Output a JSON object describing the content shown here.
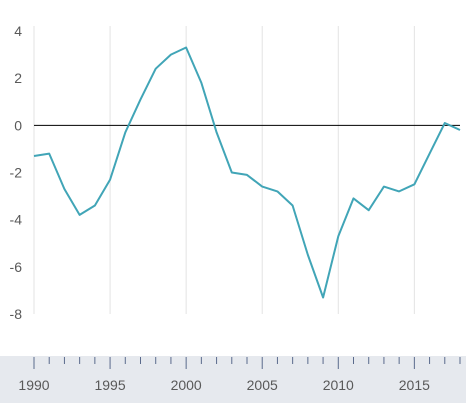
{
  "chart_data": {
    "type": "line",
    "title": "",
    "xlabel": "",
    "ylabel": "",
    "xlim": [
      1990,
      2018
    ],
    "ylim": [
      -8,
      4
    ],
    "x_ticks": [
      {
        "value": 1990,
        "label": "1990"
      },
      {
        "value": 1995,
        "label": "1995"
      },
      {
        "value": 2000,
        "label": "2000"
      },
      {
        "value": 2005,
        "label": "2005"
      },
      {
        "value": 2010,
        "label": "2010"
      },
      {
        "value": 2015,
        "label": "2015"
      }
    ],
    "y_ticks": [
      {
        "value": 4,
        "label": "4"
      },
      {
        "value": 2,
        "label": "2"
      },
      {
        "value": 0,
        "label": "0"
      },
      {
        "value": -2,
        "label": "-2"
      },
      {
        "value": -4,
        "label": "-4"
      },
      {
        "value": -6,
        "label": "-6"
      },
      {
        "value": -8,
        "label": "-8"
      }
    ],
    "grid": "vertical",
    "zero_line": true,
    "colors": {
      "line": "#41a5b7",
      "grid": "#e3e3e3",
      "zero_line": "#000000",
      "axis_band": "#e6e9ee",
      "axis_ticks": "#5a6a8c"
    },
    "series": [
      {
        "x": [
          1990,
          1991,
          1992,
          1993,
          1994,
          1995,
          1996,
          1997,
          1998,
          1999,
          2000,
          2001,
          2002,
          2003,
          2004,
          2005,
          2006,
          2007,
          2008,
          2009,
          2010,
          2011,
          2012,
          2013,
          2014,
          2015,
          2016,
          2017,
          2018
        ],
        "values": [
          -1.3,
          -1.2,
          -2.7,
          -3.8,
          -3.4,
          -2.3,
          -0.3,
          1.1,
          2.4,
          3.0,
          3.3,
          1.8,
          -0.3,
          -2.0,
          -2.1,
          -2.6,
          -2.8,
          -3.4,
          -5.5,
          -7.3,
          -4.7,
          -3.1,
          -3.6,
          -2.6,
          -2.8,
          -2.5,
          -1.2,
          0.1,
          -0.2
        ]
      }
    ]
  }
}
